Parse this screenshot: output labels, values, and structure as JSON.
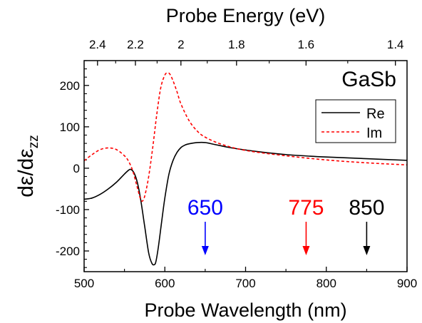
{
  "chart_data": {
    "type": "line",
    "sample_label": "GaSb",
    "xlabel": "Probe Wavelength (nm)",
    "top_xlabel": "Probe Energy (eV)",
    "ylabel_main": "dε/dε",
    "ylabel_sub": "zz",
    "xlim": [
      500,
      900
    ],
    "ylim": [
      -250,
      260
    ],
    "x_ticks": [
      500,
      600,
      700,
      800,
      900
    ],
    "x_tick_labels": [
      "500",
      "600",
      "700",
      "800",
      "900"
    ],
    "y_ticks": [
      -200,
      -100,
      0,
      100,
      200
    ],
    "y_tick_labels": [
      "-200",
      "-100",
      "0",
      "100",
      "200"
    ],
    "top_ticks_eV": [
      2.4,
      2.2,
      2.0,
      1.8,
      1.6,
      1.4
    ],
    "top_tick_labels": [
      "2.4",
      "2.2",
      "2",
      "1.8",
      "1.6",
      "1.4"
    ],
    "legend_position": "upper-right",
    "series": [
      {
        "name": "Re",
        "color": "#000000",
        "style": "solid",
        "x": [
          500,
          510,
          520,
          530,
          540,
          550,
          555,
          558,
          562,
          566,
          570,
          575,
          580,
          584,
          587,
          589,
          592,
          596,
          600,
          605,
          610,
          615,
          620,
          625,
          630,
          640,
          650,
          660,
          670,
          680,
          700,
          720,
          750,
          780,
          800,
          850,
          900
        ],
        "y": [
          -75,
          -72,
          -63,
          -50,
          -34,
          -14,
          -5,
          -3,
          -12,
          -35,
          -75,
          -140,
          -205,
          -230,
          -233,
          -225,
          -190,
          -130,
          -72,
          -15,
          18,
          38,
          50,
          56,
          59,
          62,
          62,
          58,
          54,
          50,
          44,
          39,
          33,
          29,
          27,
          23,
          19
        ]
      },
      {
        "name": "Im",
        "color": "#ff0000",
        "style": "dashed",
        "x": [
          500,
          510,
          520,
          530,
          540,
          550,
          555,
          560,
          565,
          570,
          573,
          576,
          580,
          585,
          590,
          595,
          600,
          603,
          606,
          610,
          615,
          620,
          630,
          640,
          650,
          670,
          700,
          750,
          800,
          850,
          900
        ],
        "y": [
          18,
          33,
          45,
          49,
          45,
          30,
          17,
          -5,
          -40,
          -75,
          -78,
          -60,
          -20,
          50,
          130,
          195,
          225,
          230,
          228,
          212,
          185,
          155,
          115,
          90,
          75,
          58,
          43,
          30,
          20,
          13,
          8
        ]
      }
    ],
    "annotations": [
      {
        "label": "650",
        "x": 650,
        "color": "#0000ff"
      },
      {
        "label": "775",
        "x": 775,
        "color": "#ff0000"
      },
      {
        "label": "850",
        "x": 850,
        "color": "#000000"
      }
    ]
  }
}
